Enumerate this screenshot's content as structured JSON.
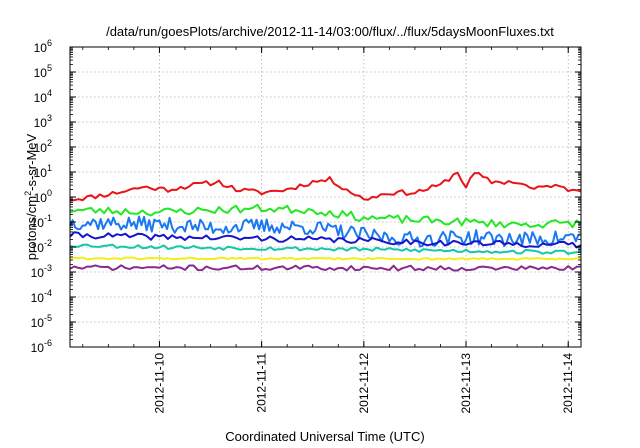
{
  "chart_data": {
    "type": "line",
    "title": "/data/run/goesPlots/archive/2012-11-14/03:00/flux/../flux/5daysMoonFluxes.txt",
    "xlabel": "Coordinated Universal Time (UTC)",
    "ylabel": "protons/cm²-s-sr-MeV",
    "ylabel_base": "protons/cm",
    "ylabel_exp": "2",
    "ylabel_rest": "-s-sr-MeV",
    "yscale": "log",
    "ylim_exp": [
      -6,
      6
    ],
    "ytick_exponents": [
      -6,
      -5,
      -4,
      -3,
      -2,
      -1,
      0,
      1,
      2,
      3,
      4,
      5,
      6
    ],
    "ytick_base": "10",
    "xlim": [
      "2012-11-09T03:00",
      "2012-11-14T03:00"
    ],
    "xticks": [
      {
        "label": "2012-11-10",
        "t": "2012-11-10T00:00"
      },
      {
        "label": "2012-11-11",
        "t": "2012-11-11T00:00"
      },
      {
        "label": "2012-11-12",
        "t": "2012-11-12T00:00"
      },
      {
        "label": "2012-11-13",
        "t": "2012-11-13T00:00"
      },
      {
        "label": "2012-11-14",
        "t": "2012-11-14T00:00"
      }
    ],
    "grid": true,
    "series": [
      {
        "color": "#e8141a",
        "width": 2,
        "seed": 11,
        "noise": 0.1,
        "step_hours": 1,
        "x": [
          "2012-11-09T03:00",
          "2012-11-09T08:00",
          "2012-11-09T14:00",
          "2012-11-09T20:00",
          "2012-11-10T02:00",
          "2012-11-10T08:00",
          "2012-11-10T14:00",
          "2012-11-10T18:00",
          "2012-11-11T00:00",
          "2012-11-11T06:00",
          "2012-11-11T12:00",
          "2012-11-11T16:00",
          "2012-11-11T20:00",
          "2012-11-12T00:00",
          "2012-11-12T06:00",
          "2012-11-12T12:00",
          "2012-11-12T18:00",
          "2012-11-12T22:00",
          "2012-11-13T00:00",
          "2012-11-13T02:00",
          "2012-11-13T06:00",
          "2012-11-13T12:00",
          "2012-11-13T16:00",
          "2012-11-13T20:00",
          "2012-11-14T00:00",
          "2012-11-14T03:00"
        ],
        "y": [
          0.8,
          1.0,
          1.5,
          2.5,
          2.0,
          3.0,
          4.0,
          2.0,
          1.5,
          2.0,
          4.0,
          5.0,
          2.0,
          0.8,
          1.5,
          1.5,
          3.0,
          10.0,
          2.5,
          9.0,
          4.0,
          4.0,
          2.0,
          3.0,
          2.0,
          2.0
        ]
      },
      {
        "color": "#22e822",
        "width": 2,
        "seed": 23,
        "noise": 0.16,
        "step_hours": 1,
        "x": [
          "2012-11-09T03:00",
          "2012-11-10T00:00",
          "2012-11-10T12:00",
          "2012-11-11T00:00",
          "2012-11-11T12:00",
          "2012-11-12T00:00",
          "2012-11-12T12:00",
          "2012-11-13T00:00",
          "2012-11-13T12:00",
          "2012-11-14T03:00"
        ],
        "y": [
          0.3,
          0.25,
          0.3,
          0.35,
          0.3,
          0.15,
          0.12,
          0.1,
          0.08,
          0.09
        ]
      },
      {
        "color": "#1a78f0",
        "width": 2,
        "seed": 37,
        "noise": 0.3,
        "step_hours": 0.6,
        "x": [
          "2012-11-09T03:00",
          "2012-11-10T00:00",
          "2012-11-10T12:00",
          "2012-11-11T00:00",
          "2012-11-11T12:00",
          "2012-11-12T00:00",
          "2012-11-12T12:00",
          "2012-11-13T00:00",
          "2012-11-13T12:00",
          "2012-11-14T03:00"
        ],
        "y": [
          0.1,
          0.08,
          0.06,
          0.07,
          0.06,
          0.03,
          0.02,
          0.025,
          0.02,
          0.025
        ]
      },
      {
        "color": "#1515cc",
        "width": 2,
        "seed": 41,
        "noise": 0.12,
        "step_hours": 1,
        "x": [
          "2012-11-09T03:00",
          "2012-11-10T00:00",
          "2012-11-11T00:00",
          "2012-11-12T00:00",
          "2012-11-13T00:00",
          "2012-11-14T03:00"
        ],
        "y": [
          0.03,
          0.025,
          0.022,
          0.018,
          0.014,
          0.012
        ]
      },
      {
        "color": "#13c7a8",
        "width": 2,
        "seed": 53,
        "noise": 0.08,
        "step_hours": 1,
        "x": [
          "2012-11-09T03:00",
          "2012-11-10T00:00",
          "2012-11-11T00:00",
          "2012-11-12T00:00",
          "2012-11-13T00:00",
          "2012-11-14T03:00"
        ],
        "y": [
          0.012,
          0.01,
          0.009,
          0.008,
          0.007,
          0.006
        ]
      },
      {
        "color": "#f2ee1a",
        "width": 2,
        "seed": 61,
        "noise": 0.04,
        "step_hours": 1,
        "x": [
          "2012-11-09T03:00",
          "2012-11-14T03:00"
        ],
        "y": [
          0.0035,
          0.0033
        ]
      },
      {
        "color": "#8a2a8a",
        "width": 2,
        "seed": 71,
        "noise": 0.1,
        "step_hours": 1,
        "x": [
          "2012-11-09T03:00",
          "2012-11-14T03:00"
        ],
        "y": [
          0.0015,
          0.0014
        ]
      }
    ]
  }
}
